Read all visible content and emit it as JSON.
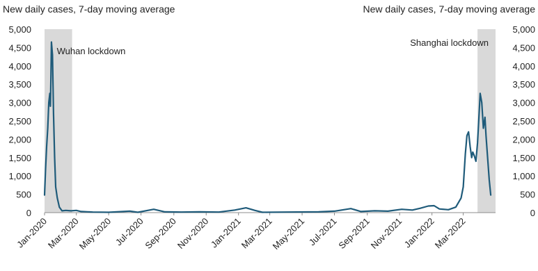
{
  "chart_data": {
    "type": "line",
    "title_left": "New daily cases, 7-day moving average",
    "title_right": "New daily cases, 7-day moving average",
    "ylim": [
      0,
      5000
    ],
    "y_ticks": [
      "5,000",
      "4,500",
      "4,000",
      "3,500",
      "3,000",
      "2,500",
      "2,000",
      "1,500",
      "1,000",
      "500",
      "0"
    ],
    "y_tick_values": [
      5000,
      4500,
      4000,
      3500,
      3000,
      2500,
      2000,
      1500,
      1000,
      500,
      0
    ],
    "x_range": [
      "2020-01-01",
      "2022-05-01"
    ],
    "x_ticks": [
      {
        "label": "Jan-2020",
        "date": "2020-01-01"
      },
      {
        "label": "Mar-2020",
        "date": "2020-03-01"
      },
      {
        "label": "May-2020",
        "date": "2020-05-01"
      },
      {
        "label": "Jul-2020",
        "date": "2020-07-01"
      },
      {
        "label": "Sep-2020",
        "date": "2020-09-01"
      },
      {
        "label": "Nov-2020",
        "date": "2020-11-01"
      },
      {
        "label": "Jan-2021",
        "date": "2021-01-01"
      },
      {
        "label": "Mar-2021",
        "date": "2021-03-01"
      },
      {
        "label": "May-2021",
        "date": "2021-05-01"
      },
      {
        "label": "Jul-2021",
        "date": "2021-07-01"
      },
      {
        "label": "Sep-2021",
        "date": "2021-09-01"
      },
      {
        "label": "Nov-2021",
        "date": "2021-11-01"
      },
      {
        "label": "Jan-2022",
        "date": "2022-01-01"
      },
      {
        "label": "Mar-2022",
        "date": "2022-03-01"
      }
    ],
    "shaded_regions": [
      {
        "label": "Wuhan lockdown",
        "start": "2020-01-01",
        "end": "2020-02-22"
      },
      {
        "label": "Shanghai lockdown",
        "start": "2022-03-28",
        "end": "2022-05-01"
      }
    ],
    "series": [
      {
        "color": "#1f5b7a",
        "points": [
          [
            "2020-01-01",
            480
          ],
          [
            "2020-01-03",
            1200
          ],
          [
            "2020-01-05",
            1800
          ],
          [
            "2020-01-07",
            2300
          ],
          [
            "2020-01-09",
            3000
          ],
          [
            "2020-01-11",
            3250
          ],
          [
            "2020-01-12",
            2900
          ],
          [
            "2020-01-13",
            3600
          ],
          [
            "2020-01-14",
            4650
          ],
          [
            "2020-01-16",
            4300
          ],
          [
            "2020-01-18",
            2700
          ],
          [
            "2020-01-20",
            1500
          ],
          [
            "2020-01-22",
            700
          ],
          [
            "2020-01-25",
            400
          ],
          [
            "2020-01-29",
            150
          ],
          [
            "2020-02-03",
            50
          ],
          [
            "2020-02-10",
            60
          ],
          [
            "2020-02-20",
            50
          ],
          [
            "2020-03-01",
            60
          ],
          [
            "2020-03-10",
            30
          ],
          [
            "2020-04-01",
            15
          ],
          [
            "2020-05-01",
            10
          ],
          [
            "2020-06-10",
            40
          ],
          [
            "2020-06-25",
            10
          ],
          [
            "2020-07-25",
            90
          ],
          [
            "2020-08-15",
            20
          ],
          [
            "2020-09-15",
            15
          ],
          [
            "2020-10-20",
            20
          ],
          [
            "2020-11-25",
            15
          ],
          [
            "2020-12-25",
            70
          ],
          [
            "2021-01-15",
            130
          ],
          [
            "2021-02-01",
            60
          ],
          [
            "2021-02-15",
            10
          ],
          [
            "2021-04-01",
            15
          ],
          [
            "2021-06-01",
            20
          ],
          [
            "2021-07-01",
            40
          ],
          [
            "2021-08-01",
            110
          ],
          [
            "2021-08-20",
            30
          ],
          [
            "2021-09-15",
            50
          ],
          [
            "2021-10-10",
            40
          ],
          [
            "2021-11-05",
            90
          ],
          [
            "2021-11-25",
            70
          ],
          [
            "2021-12-10",
            120
          ],
          [
            "2021-12-25",
            180
          ],
          [
            "2022-01-05",
            190
          ],
          [
            "2022-01-15",
            100
          ],
          [
            "2022-02-01",
            80
          ],
          [
            "2022-02-15",
            150
          ],
          [
            "2022-02-25",
            400
          ],
          [
            "2022-03-01",
            700
          ],
          [
            "2022-03-05",
            1600
          ],
          [
            "2022-03-08",
            2100
          ],
          [
            "2022-03-11",
            2200
          ],
          [
            "2022-03-14",
            1800
          ],
          [
            "2022-03-17",
            1500
          ],
          [
            "2022-03-19",
            1650
          ],
          [
            "2022-03-22",
            1550
          ],
          [
            "2022-03-25",
            1400
          ],
          [
            "2022-03-28",
            1900
          ],
          [
            "2022-03-31",
            2700
          ],
          [
            "2022-04-02",
            3250
          ],
          [
            "2022-04-05",
            3000
          ],
          [
            "2022-04-08",
            2300
          ],
          [
            "2022-04-11",
            2600
          ],
          [
            "2022-04-13",
            2100
          ],
          [
            "2022-04-16",
            1500
          ],
          [
            "2022-04-19",
            900
          ],
          [
            "2022-04-22",
            480
          ]
        ]
      }
    ]
  }
}
